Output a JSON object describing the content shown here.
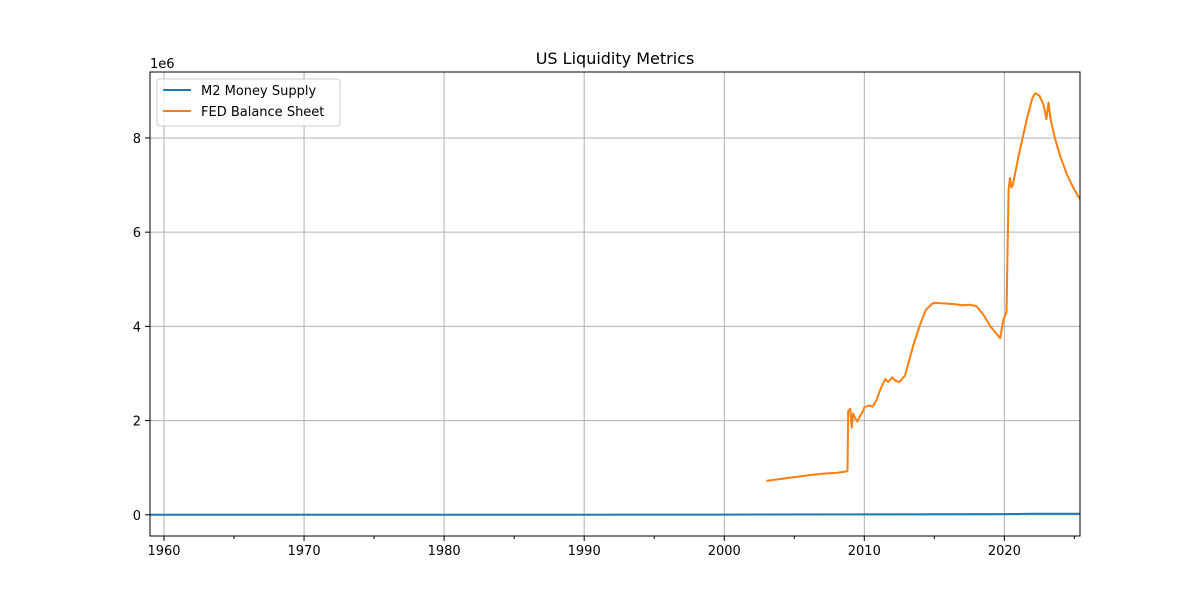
{
  "chart_data": {
    "type": "line",
    "title": "US Liquidity Metrics",
    "xlabel": "",
    "ylabel": "",
    "y_offset_label": "1e6",
    "xlim": [
      1959.0,
      2025.4
    ],
    "ylim": [
      -0.45,
      9.4
    ],
    "y_scale": 1000000,
    "x_ticks": [
      1960,
      1970,
      1980,
      1990,
      2000,
      2010,
      2020
    ],
    "x_tick_labels": [
      "1960",
      "1970",
      "1980",
      "1990",
      "2000",
      "2010",
      "2020"
    ],
    "x_minor_ticks": [
      1965,
      1975,
      1985,
      1995,
      2005,
      2015,
      2025
    ],
    "y_ticks": [
      0,
      2,
      4,
      6,
      8
    ],
    "y_tick_labels": [
      "0",
      "2",
      "4",
      "6",
      "8"
    ],
    "grid": true,
    "legend_position": "upper-left",
    "series": [
      {
        "name": "M2 Money Supply",
        "color": "#1f77b4",
        "x": [
          1959.0,
          1970,
          1980,
          1990,
          2000,
          2010,
          2020,
          2022,
          2025.4
        ],
        "y": [
          0.0003,
          0.0006,
          0.0015,
          0.0032,
          0.0047,
          0.0087,
          0.0154,
          0.0217,
          0.0216
        ]
      },
      {
        "name": "FED Balance Sheet",
        "color": "#ff7f0e",
        "x": [
          2003.0,
          2004.0,
          2005.0,
          2006.0,
          2007.0,
          2008.0,
          2008.7,
          2008.8,
          2008.85,
          2009.0,
          2009.1,
          2009.2,
          2009.35,
          2009.5,
          2009.7,
          2009.9,
          2010.0,
          2010.3,
          2010.6,
          2010.9,
          2011.0,
          2011.2,
          2011.5,
          2011.7,
          2012.0,
          2012.2,
          2012.5,
          2012.9,
          2013.0,
          2013.5,
          2014.0,
          2014.4,
          2014.8,
          2015.0,
          2015.5,
          2016.0,
          2016.5,
          2017.0,
          2017.5,
          2018.0,
          2018.5,
          2019.0,
          2019.5,
          2019.7,
          2019.9,
          2020.0,
          2020.15,
          2020.3,
          2020.4,
          2020.5,
          2020.6,
          2020.8,
          2021.0,
          2021.3,
          2021.6,
          2022.0,
          2022.2,
          2022.5,
          2022.8,
          2023.0,
          2023.15,
          2023.3,
          2023.6,
          2024.0,
          2024.5,
          2025.0,
          2025.4
        ],
        "y": [
          0.72,
          0.76,
          0.8,
          0.84,
          0.87,
          0.89,
          0.92,
          0.94,
          2.2,
          2.25,
          1.85,
          2.15,
          2.05,
          1.98,
          2.1,
          2.2,
          2.28,
          2.32,
          2.3,
          2.45,
          2.55,
          2.7,
          2.88,
          2.82,
          2.92,
          2.85,
          2.82,
          2.95,
          3.05,
          3.6,
          4.05,
          4.35,
          4.47,
          4.5,
          4.49,
          4.48,
          4.47,
          4.45,
          4.46,
          4.43,
          4.25,
          4.0,
          3.82,
          3.75,
          4.1,
          4.2,
          4.3,
          6.9,
          7.15,
          6.95,
          7.0,
          7.3,
          7.6,
          8.0,
          8.4,
          8.85,
          8.95,
          8.9,
          8.7,
          8.4,
          8.75,
          8.4,
          8.0,
          7.6,
          7.2,
          6.9,
          6.7
        ]
      }
    ]
  }
}
